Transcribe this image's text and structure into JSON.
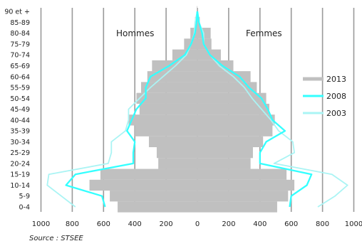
{
  "chart_data": {
    "type": "bar",
    "subtype": "population-pyramid",
    "panel_labels": {
      "left": "Hommes",
      "right": "Femmes"
    },
    "age_groups": [
      "0-4",
      "5-9",
      "10-14",
      "15-19",
      "20-24",
      "25-29",
      "30-34",
      "35-39",
      "40-44",
      "45-49",
      "50-54",
      "55-59",
      "60-64",
      "65-69",
      "70-74",
      "75-79",
      "80-84",
      "85-89",
      "90 et +"
    ],
    "x_ticks": {
      "left": [
        "1000",
        "800",
        "600",
        "400",
        "200",
        "0"
      ],
      "right": [
        "200",
        "400",
        "600",
        "800",
        "1000"
      ]
    },
    "xlim": [
      -1000,
      1000
    ],
    "grid": true,
    "legend_position": "right",
    "series": [
      {
        "name": "2013",
        "kind": "bar",
        "color": "#c0c0c0",
        "men": [
          510,
          560,
          690,
          620,
          250,
          260,
          310,
          400,
          440,
          370,
          390,
          360,
          320,
          290,
          160,
          85,
          45,
          15,
          3
        ],
        "women": [
          510,
          580,
          620,
          570,
          340,
          355,
          420,
          480,
          495,
          460,
          440,
          380,
          340,
          230,
          150,
          90,
          85,
          15,
          0
        ]
      },
      {
        "name": "2008",
        "kind": "line",
        "color": "#33ffff",
        "men": [
          590,
          610,
          840,
          780,
          410,
          410,
          400,
          450,
          420,
          390,
          330,
          330,
          300,
          180,
          80,
          40,
          15,
          5,
          1
        ],
        "women": [
          590,
          600,
          700,
          730,
          400,
          400,
          440,
          560,
          480,
          450,
          410,
          330,
          270,
          160,
          80,
          40,
          30,
          10,
          0
        ]
      },
      {
        "name": "2003",
        "kind": "line",
        "color": "#aaf4f4",
        "men": [
          780,
          870,
          960,
          950,
          570,
          550,
          550,
          460,
          440,
          440,
          370,
          300,
          220,
          140,
          70,
          40,
          20,
          15,
          1
        ],
        "women": [
          770,
          880,
          960,
          860,
          490,
          620,
          610,
          520,
          470,
          410,
          350,
          300,
          230,
          140,
          80,
          40,
          40,
          10,
          0
        ]
      }
    ]
  },
  "source": "Source : STSEE"
}
